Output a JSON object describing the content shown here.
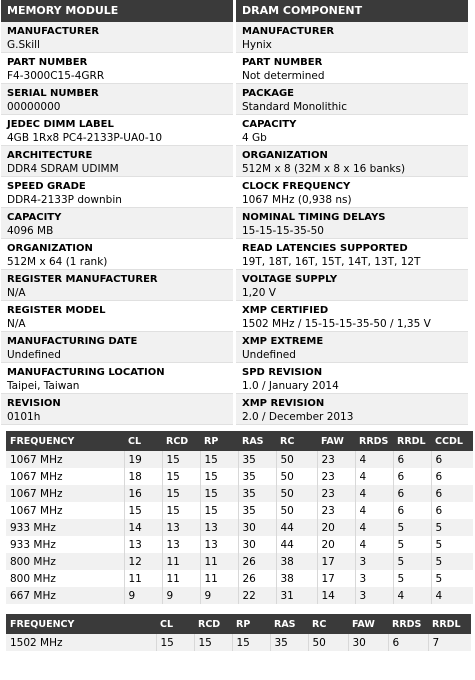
{
  "left": {
    "header": "MEMORY MODULE",
    "items": [
      {
        "label": "MANUFACTURER",
        "value": "G.Skill"
      },
      {
        "label": "PART NUMBER",
        "value": "F4-3000C15-4GRR"
      },
      {
        "label": "SERIAL NUMBER",
        "value": "00000000"
      },
      {
        "label": "JEDEC DIMM LABEL",
        "value": "4GB 1Rx8 PC4-2133P-UA0-10"
      },
      {
        "label": "ARCHITECTURE",
        "value": "DDR4 SDRAM UDIMM"
      },
      {
        "label": "SPEED GRADE",
        "value": "DDR4-2133P downbin"
      },
      {
        "label": "CAPACITY",
        "value": "4096 MB"
      },
      {
        "label": "ORGANIZATION",
        "value": "512M x 64 (1 rank)"
      },
      {
        "label": "REGISTER MANUFACTURER",
        "value": "N/A"
      },
      {
        "label": "REGISTER MODEL",
        "value": "N/A"
      },
      {
        "label": "MANUFACTURING DATE",
        "value": "Undefined"
      },
      {
        "label": "MANUFACTURING LOCATION",
        "value": "Taipei, Taiwan"
      },
      {
        "label": "REVISION",
        "value": "0101h"
      }
    ]
  },
  "right": {
    "header": "DRAM COMPONENT",
    "items": [
      {
        "label": "MANUFACTURER",
        "value": "Hynix"
      },
      {
        "label": "PART NUMBER",
        "value": "Not determined"
      },
      {
        "label": "PACKAGE",
        "value": "Standard Monolithic"
      },
      {
        "label": "CAPACITY",
        "value": "4 Gb"
      },
      {
        "label": "ORGANIZATION",
        "value": "512M x 8 (32M x 8 x 16 banks)"
      },
      {
        "label": "CLOCK FREQUENCY",
        "value": "1067 MHz (0,938 ns)"
      },
      {
        "label": "NOMINAL TIMING DELAYS",
        "value": "15-15-15-35-50"
      },
      {
        "label": "READ LATENCIES SUPPORTED",
        "value": "19T, 18T, 16T, 15T, 14T, 13T, 12T"
      },
      {
        "label": "VOLTAGE SUPPLY",
        "value": "1,20 V"
      },
      {
        "label": "XMP CERTIFIED",
        "value": "1502 MHz / 15-15-15-35-50 / 1,35 V"
      },
      {
        "label": "XMP EXTREME",
        "value": "Undefined"
      },
      {
        "label": "SPD REVISION",
        "value": "1.0 / January 2014"
      },
      {
        "label": "XMP REVISION",
        "value": "2.0 / December 2013"
      }
    ]
  },
  "timing_table": {
    "columns": [
      "FREQUENCY",
      "CL",
      "RCD",
      "RP",
      "RAS",
      "RC",
      "FAW",
      "RRDS",
      "RRDL",
      "CCDL"
    ],
    "rows": [
      [
        "1067 MHz",
        "19",
        "15",
        "15",
        "35",
        "50",
        "23",
        "4",
        "6",
        "6"
      ],
      [
        "1067 MHz",
        "18",
        "15",
        "15",
        "35",
        "50",
        "23",
        "4",
        "6",
        "6"
      ],
      [
        "1067 MHz",
        "16",
        "15",
        "15",
        "35",
        "50",
        "23",
        "4",
        "6",
        "6"
      ],
      [
        "1067 MHz",
        "15",
        "15",
        "15",
        "35",
        "50",
        "23",
        "4",
        "6",
        "6"
      ],
      [
        "933 MHz",
        "14",
        "13",
        "13",
        "30",
        "44",
        "20",
        "4",
        "5",
        "5"
      ],
      [
        "933 MHz",
        "13",
        "13",
        "13",
        "30",
        "44",
        "20",
        "4",
        "5",
        "5"
      ],
      [
        "800 MHz",
        "12",
        "11",
        "11",
        "26",
        "38",
        "17",
        "3",
        "5",
        "5"
      ],
      [
        "800 MHz",
        "11",
        "11",
        "11",
        "26",
        "38",
        "17",
        "3",
        "5",
        "5"
      ],
      [
        "667 MHz",
        "9",
        "9",
        "9",
        "22",
        "31",
        "14",
        "3",
        "4",
        "4"
      ]
    ]
  },
  "xmp_table": {
    "columns": [
      "FREQUENCY",
      "CL",
      "RCD",
      "RP",
      "RAS",
      "RC",
      "FAW",
      "RRDS",
      "RRDL"
    ],
    "rows": [
      [
        "1502 MHz",
        "15",
        "15",
        "15",
        "35",
        "50",
        "30",
        "6",
        "7"
      ]
    ]
  }
}
